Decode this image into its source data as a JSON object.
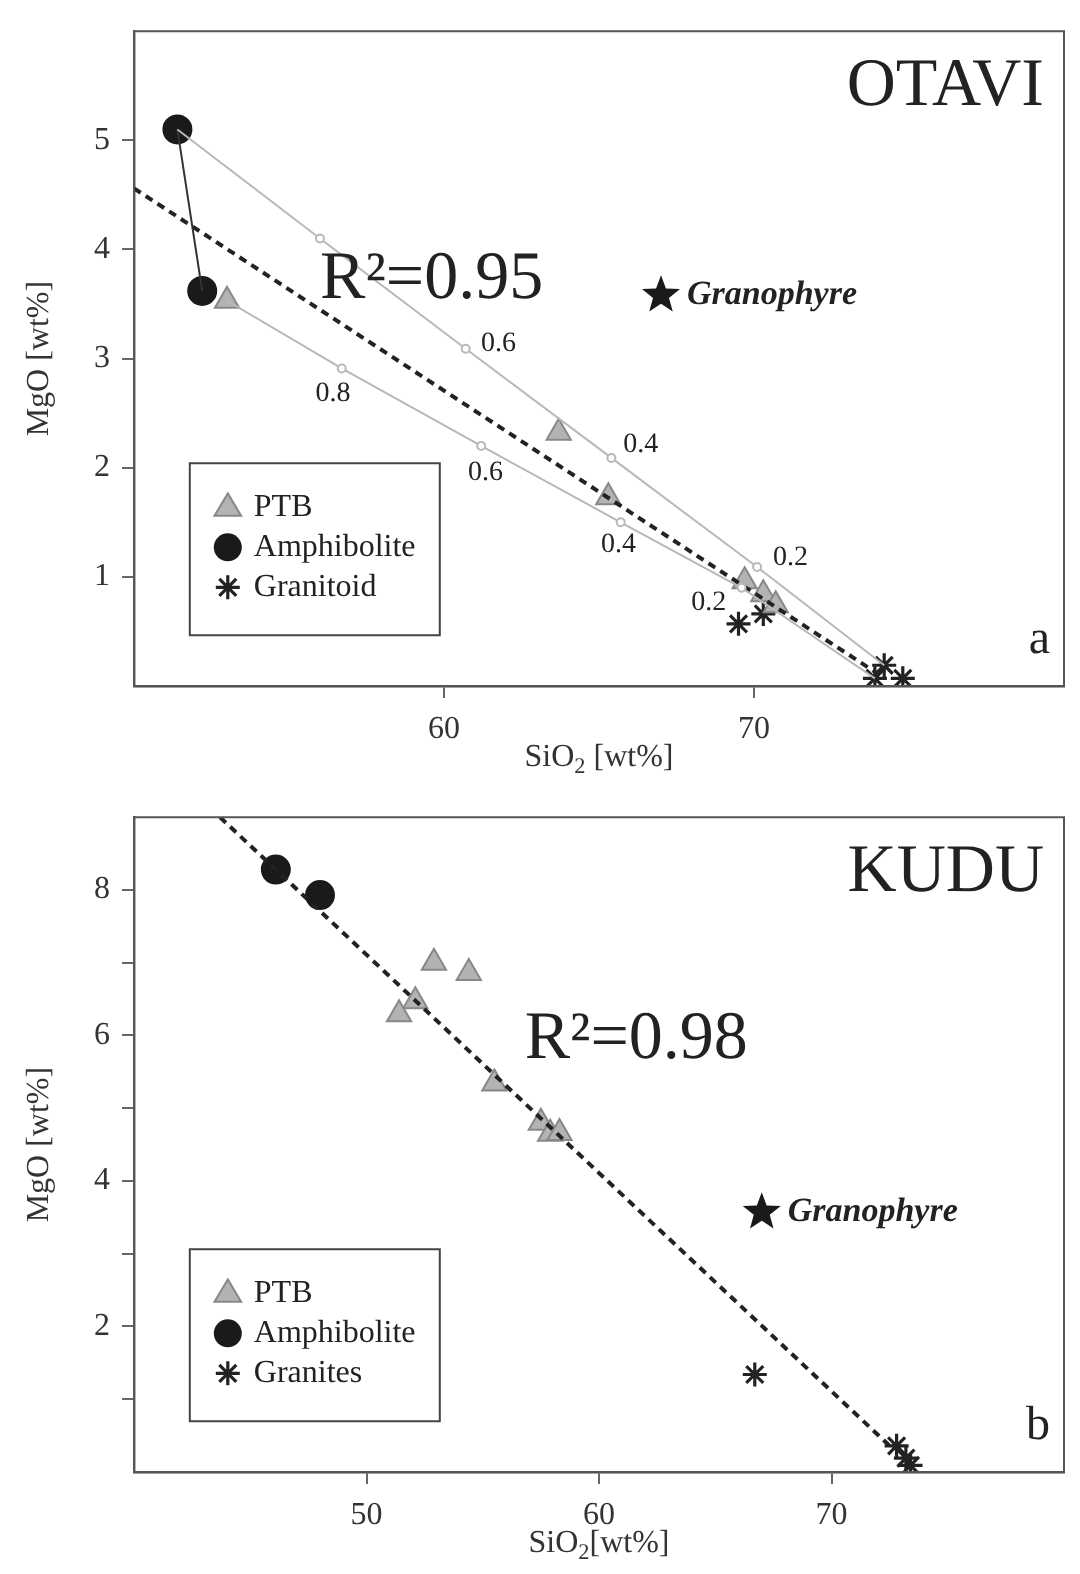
{
  "chart_data": [
    {
      "type": "scatter",
      "title": "OTAVI",
      "xlabel": "SiO$_{2}$ [wt%]",
      "ylabel": "MgO [wt%]",
      "xlim": [
        50,
        80
      ],
      "ylim": [
        0,
        6
      ],
      "xticks": [
        60,
        70
      ],
      "yticks": [
        1,
        2,
        3,
        4,
        5
      ],
      "legend": "left",
      "annotations": [
        "R²=0.95",
        "a",
        "0.6",
        "0.4",
        "0.2",
        "0.8",
        "0.6",
        "0.4",
        "0.2"
      ],
      "series": [
        {
          "type": "line",
          "color": "#b8b8b8",
          "marker": "circle",
          "x": [
            51.4,
            56.0,
            60.7,
            65.4,
            70.1,
            74.2
          ],
          "values": [
            5.1,
            4.1,
            3.09,
            2.09,
            1.09,
            0.19
          ]
        },
        {
          "type": "line",
          "color": "#b8b8b8",
          "marker": "circle",
          "x": [
            53.0,
            56.7,
            61.2,
            65.7,
            69.6,
            73.9
          ],
          "values": [
            3.53,
            2.91,
            2.2,
            1.5,
            0.9,
            0.07
          ]
        },
        {
          "type": "line",
          "color": "#333333",
          "marker": "none",
          "x": [
            51.4,
            52.2
          ],
          "values": [
            5.1,
            3.62
          ]
        },
        {
          "type": "line",
          "color": "#222222",
          "marker": "none",
          "line_style": "dashed",
          "x": [
            50,
            73.9
          ],
          "values": [
            4.56,
            0.13
          ]
        },
        {
          "name": "PTB",
          "type": "scatter",
          "color": "#b3b3b3",
          "marker": "triangle",
          "x": [
            53.0,
            63.7,
            65.3,
            69.7,
            70.3,
            70.7
          ],
          "values": [
            3.53,
            2.32,
            1.73,
            0.96,
            0.84,
            0.74
          ]
        },
        {
          "name": "Amphibolite",
          "type": "scatter",
          "color": "#1a1a1a",
          "marker": "circle",
          "x": [
            51.4,
            52.2
          ],
          "values": [
            5.1,
            3.62
          ]
        },
        {
          "name": "Granitoid",
          "type": "scatter",
          "color": "#222222",
          "marker": "cross",
          "x": [
            69.5,
            70.3,
            74.2,
            73.9,
            74.8
          ],
          "values": [
            0.57,
            0.66,
            0.19,
            0.07,
            0.07
          ]
        },
        {
          "name": "Granophyre",
          "type": "scatter",
          "color": "#1a1a1a",
          "marker": "star",
          "x": [
            67.0
          ],
          "values": [
            3.58
          ]
        }
      ]
    },
    {
      "type": "scatter",
      "title": "KUDU",
      "xlabel": "SiO$_{2}$[wt%]",
      "ylabel": "MgO [wt%]",
      "xlim": [
        40,
        80
      ],
      "ylim": [
        0,
        9
      ],
      "xticks": [
        50,
        60,
        70
      ],
      "yticks": [
        {
          "value": 1,
          "label": null
        },
        2,
        {
          "value": 3,
          "label": null
        },
        4,
        {
          "value": 5,
          "label": null
        },
        6,
        {
          "value": 7,
          "label": null
        },
        8
      ],
      "legend": "left",
      "annotations": [
        "R²=0.98",
        "b"
      ],
      "series": [
        {
          "type": "line",
          "color": "#222222",
          "marker": "none",
          "line_style": "dashed",
          "x": [
            43.7,
            72.6
          ],
          "values": [
            9.0,
            0.33
          ]
        },
        {
          "name": "PTB",
          "type": "scatter",
          "color": "#b3b3b3",
          "marker": "triangle",
          "x": [
            52.9,
            54.4,
            52.1,
            51.4,
            55.5,
            57.5,
            57.9,
            58.3
          ],
          "values": [
            7.0,
            6.86,
            6.47,
            6.29,
            5.34,
            4.8,
            4.65,
            4.66
          ]
        },
        {
          "name": "Amphibolite",
          "type": "scatter",
          "color": "#1a1a1a",
          "marker": "circle",
          "x": [
            46.1,
            48.0
          ],
          "values": [
            8.28,
            7.93
          ]
        },
        {
          "name": "Granites",
          "type": "scatter",
          "color": "#222222",
          "marker": "cross",
          "x": [
            66.7,
            72.8,
            73.2,
            73.4
          ],
          "values": [
            1.34,
            0.36,
            0.19,
            0.09
          ]
        },
        {
          "name": "Granophyre",
          "type": "scatter",
          "color": "#1a1a1a",
          "marker": "star",
          "x": [
            67.0
          ],
          "values": [
            3.57
          ]
        }
      ]
    }
  ]
}
